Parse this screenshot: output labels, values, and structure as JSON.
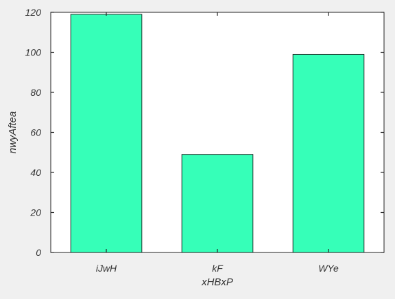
{
  "chart_data": {
    "type": "bar",
    "title": "",
    "xlabel": "xHBxP",
    "ylabel": "nwyAftea",
    "categories": [
      "iJwH",
      "kF",
      "WYe"
    ],
    "values": [
      119,
      49,
      99
    ],
    "ylim": [
      0,
      120
    ],
    "yticks": [
      0,
      20,
      40,
      60,
      80,
      100,
      120
    ],
    "grid": false,
    "legend": "none",
    "colors": {
      "bar_fill": "#36ffb8",
      "bar_edge": "#1a1a1a",
      "plot_background": "#ffffff",
      "figure_background": "#f0f0f0",
      "axis": "#222222",
      "text": "#333333"
    }
  }
}
